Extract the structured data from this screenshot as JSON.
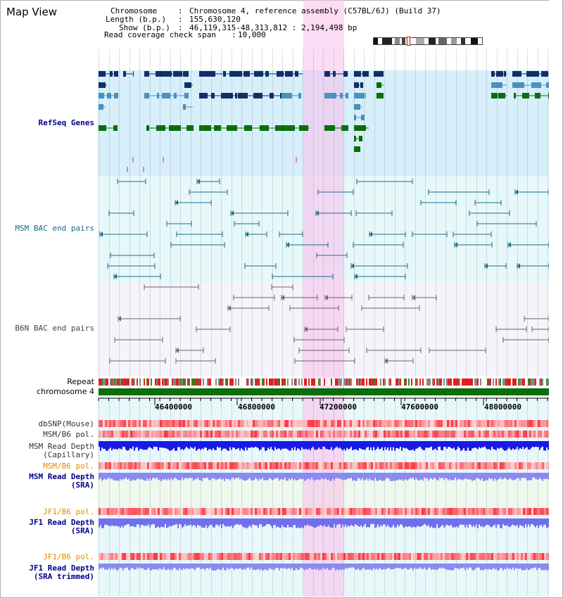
{
  "title": "Map View",
  "info": {
    "chromosome_key": "Chromosome",
    "chromosome_val": "Chromosome 4, reference assembly (C57BL/6J) (Build 37)",
    "length_key": "Length (b.p.)",
    "length_val": "155,630,120",
    "show_key": "Show (b.p.)",
    "show_val": "46,119,315-48,313,812 : 2,194,498 bp",
    "coverage_key": "Read coverage check span",
    "coverage_val": "10,000"
  },
  "labels": {
    "refseq": "RefSeq Genes",
    "msm_bac": "MSM BAC end pairs",
    "b6n_bac": "B6N BAC end pairs",
    "repeat": "Repeat",
    "chromosome": "chromosome 4",
    "dbsnp": "dbSNP(Mouse)",
    "msm_b6_pol1": "MSM/B6 pol.",
    "msm_depth_cap1": "MSM Read Depth",
    "msm_depth_cap2": "(Capillary)",
    "msm_b6_pol2": "MSM/B6 pol.",
    "msm_depth_sra1": "MSM Read Depth",
    "msm_depth_sra2": "(SRA)",
    "jf1_b6_pol1": "JF1/B6 pol.",
    "jf1_depth_sra1": "JF1 Read Depth",
    "jf1_depth_sra2": "(SRA)",
    "jf1_b6_pol2": "JF1/B6 pol.",
    "jf1_depth_trim1": "JF1 Read Depth",
    "jf1_depth_trim2": "(SRA trimmed)"
  },
  "ticks": [
    "46400000",
    "46800000",
    "47200000",
    "47600000",
    "48000000"
  ],
  "colors": {
    "refseq_bg": "#d6effa",
    "msm_bg": "#e6f8fa",
    "b6n_bg": "#f4f4fa",
    "highlight": "#fbc3ec",
    "gene_dark": "#0f2f66",
    "gene_light": "#4a90c0",
    "gene_green": "#0a6e0a",
    "msm_pair": "#1a6a8a",
    "b6n_pair": "#666666",
    "depth_blue": "#1a1ae6",
    "depth_light": "#8a8af0",
    "label_blue": "#00008b",
    "label_orange": "#e08a00"
  }
}
